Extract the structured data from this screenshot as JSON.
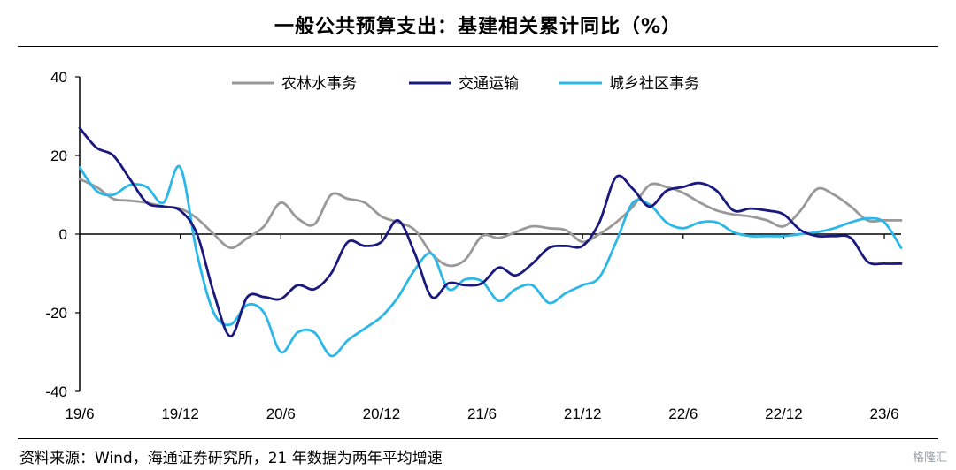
{
  "title": "一般公共预算支出：基建相关累计同比（%）",
  "source": "资料来源：Wind，海通证券研究所，21 年数据为两年平均增速",
  "watermark": "格隆汇",
  "chart_data": {
    "type": "line",
    "title": "一般公共预算支出：基建相关累计同比（%）",
    "xlabel": "",
    "ylabel": "",
    "ylim": [
      -40,
      40
    ],
    "yticks": [
      40,
      20,
      0,
      -20,
      -40
    ],
    "xticks": [
      "19/6",
      "19/12",
      "20/6",
      "20/12",
      "21/6",
      "21/12",
      "22/6",
      "22/12",
      "23/6"
    ],
    "x_range_months": [
      "2019-06",
      "2023-07"
    ],
    "grid": false,
    "legend_position": "top-center",
    "series": [
      {
        "name": "农林水事务",
        "color": "#999999",
        "points": [
          [
            "2019-06",
            14
          ],
          [
            "2019-07",
            12
          ],
          [
            "2019-08",
            9
          ],
          [
            "2019-09",
            8.5
          ],
          [
            "2019-10",
            8
          ],
          [
            "2019-11",
            7
          ],
          [
            "2019-12",
            6.5
          ],
          [
            "2020-01",
            4
          ],
          [
            "2020-02",
            0
          ],
          [
            "2020-03",
            -3.5
          ],
          [
            "2020-04",
            -1
          ],
          [
            "2020-05",
            2
          ],
          [
            "2020-06",
            8
          ],
          [
            "2020-07",
            4
          ],
          [
            "2020-08",
            2.5
          ],
          [
            "2020-09",
            10
          ],
          [
            "2020-10",
            9
          ],
          [
            "2020-11",
            8
          ],
          [
            "2020-12",
            4.5
          ],
          [
            "2021-01",
            3
          ],
          [
            "2021-02",
            1
          ],
          [
            "2021-03",
            -5
          ],
          [
            "2021-04",
            -8
          ],
          [
            "2021-05",
            -6.5
          ],
          [
            "2021-06",
            -0.5
          ],
          [
            "2021-07",
            -1
          ],
          [
            "2021-08",
            0.5
          ],
          [
            "2021-09",
            2
          ],
          [
            "2021-10",
            1.5
          ],
          [
            "2021-11",
            1
          ],
          [
            "2021-12",
            -2
          ],
          [
            "2022-01",
            0
          ],
          [
            "2022-02",
            3
          ],
          [
            "2022-03",
            7
          ],
          [
            "2022-04",
            12.5
          ],
          [
            "2022-05",
            12
          ],
          [
            "2022-06",
            10.5
          ],
          [
            "2022-07",
            8
          ],
          [
            "2022-08",
            6
          ],
          [
            "2022-09",
            5
          ],
          [
            "2022-10",
            4.5
          ],
          [
            "2022-11",
            3.5
          ],
          [
            "2022-12",
            2
          ],
          [
            "2023-01",
            6
          ],
          [
            "2023-02",
            11.5
          ],
          [
            "2023-03",
            10
          ],
          [
            "2023-04",
            7
          ],
          [
            "2023-05",
            3.5
          ],
          [
            "2023-06",
            3.5
          ],
          [
            "2023-07",
            3.5
          ]
        ]
      },
      {
        "name": "交通运输",
        "color": "#1a1a7e",
        "points": [
          [
            "2019-06",
            27
          ],
          [
            "2019-07",
            22
          ],
          [
            "2019-08",
            20
          ],
          [
            "2019-09",
            14
          ],
          [
            "2019-10",
            8
          ],
          [
            "2019-11",
            7
          ],
          [
            "2019-12",
            6
          ],
          [
            "2020-01",
            0
          ],
          [
            "2020-02",
            -15
          ],
          [
            "2020-03",
            -26
          ],
          [
            "2020-04",
            -16
          ],
          [
            "2020-05",
            -16
          ],
          [
            "2020-06",
            -16.5
          ],
          [
            "2020-07",
            -13
          ],
          [
            "2020-08",
            -14
          ],
          [
            "2020-09",
            -10
          ],
          [
            "2020-10",
            -2
          ],
          [
            "2020-11",
            -3
          ],
          [
            "2020-12",
            -2
          ],
          [
            "2021-01",
            3.5
          ],
          [
            "2021-02",
            -5
          ],
          [
            "2021-03",
            -16
          ],
          [
            "2021-04",
            -12.5
          ],
          [
            "2021-05",
            -13
          ],
          [
            "2021-06",
            -12.5
          ],
          [
            "2021-07",
            -8.5
          ],
          [
            "2021-08",
            -10.5
          ],
          [
            "2021-09",
            -7.5
          ],
          [
            "2021-10",
            -3.5
          ],
          [
            "2021-11",
            -3
          ],
          [
            "2021-12",
            -3
          ],
          [
            "2022-01",
            3
          ],
          [
            "2022-02",
            14.5
          ],
          [
            "2022-03",
            11.5
          ],
          [
            "2022-04",
            7
          ],
          [
            "2022-05",
            11
          ],
          [
            "2022-06",
            12
          ],
          [
            "2022-07",
            13
          ],
          [
            "2022-08",
            11
          ],
          [
            "2022-09",
            6
          ],
          [
            "2022-10",
            6.5
          ],
          [
            "2022-11",
            6
          ],
          [
            "2022-12",
            5
          ],
          [
            "2023-01",
            1
          ],
          [
            "2023-02",
            -0.5
          ],
          [
            "2023-03",
            -0.5
          ],
          [
            "2023-04",
            -1
          ],
          [
            "2023-05",
            -7
          ],
          [
            "2023-06",
            -7.5
          ],
          [
            "2023-07",
            -7.5
          ]
        ]
      },
      {
        "name": "城乡社区事务",
        "color": "#2bb7e8",
        "points": [
          [
            "2019-06",
            17
          ],
          [
            "2019-07",
            11
          ],
          [
            "2019-08",
            10
          ],
          [
            "2019-09",
            12.5
          ],
          [
            "2019-10",
            12
          ],
          [
            "2019-11",
            8
          ],
          [
            "2019-12",
            17
          ],
          [
            "2020-01",
            -5
          ],
          [
            "2020-02",
            -20
          ],
          [
            "2020-03",
            -23
          ],
          [
            "2020-04",
            -18
          ],
          [
            "2020-05",
            -20
          ],
          [
            "2020-06",
            -30
          ],
          [
            "2020-07",
            -25
          ],
          [
            "2020-08",
            -25
          ],
          [
            "2020-09",
            -31
          ],
          [
            "2020-10",
            -27
          ],
          [
            "2020-11",
            -24
          ],
          [
            "2020-12",
            -21
          ],
          [
            "2021-01",
            -16
          ],
          [
            "2021-02",
            -9
          ],
          [
            "2021-03",
            -5
          ],
          [
            "2021-04",
            -14
          ],
          [
            "2021-05",
            -11.5
          ],
          [
            "2021-06",
            -12
          ],
          [
            "2021-07",
            -17
          ],
          [
            "2021-08",
            -14
          ],
          [
            "2021-09",
            -13
          ],
          [
            "2021-10",
            -17.5
          ],
          [
            "2021-11",
            -15
          ],
          [
            "2021-12",
            -13
          ],
          [
            "2022-01",
            -11
          ],
          [
            "2022-02",
            -2
          ],
          [
            "2022-03",
            8
          ],
          [
            "2022-04",
            7.5
          ],
          [
            "2022-05",
            3
          ],
          [
            "2022-06",
            1.5
          ],
          [
            "2022-07",
            3
          ],
          [
            "2022-08",
            3
          ],
          [
            "2022-09",
            0.5
          ],
          [
            "2022-10",
            -0.5
          ],
          [
            "2022-11",
            -0.5
          ],
          [
            "2022-12",
            -0.5
          ],
          [
            "2023-01",
            0
          ],
          [
            "2023-02",
            0.5
          ],
          [
            "2023-03",
            1.5
          ],
          [
            "2023-04",
            3
          ],
          [
            "2023-05",
            4
          ],
          [
            "2023-06",
            3
          ],
          [
            "2023-07",
            -3.5
          ]
        ]
      }
    ]
  }
}
